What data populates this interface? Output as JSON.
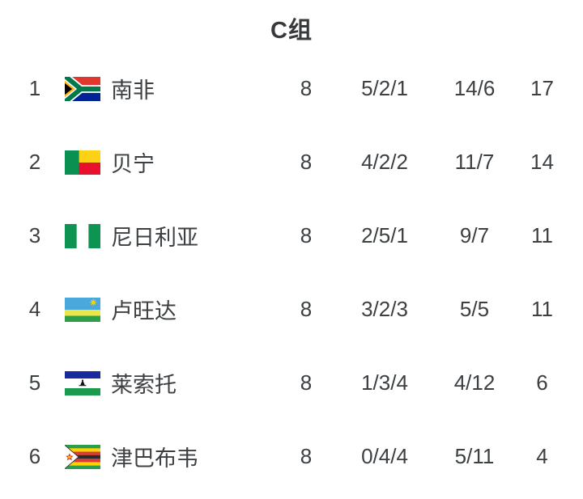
{
  "title": "C组",
  "colors": {
    "background": "#ffffff",
    "row_text": "#3c4043",
    "title_text": "#37393c"
  },
  "standings": {
    "rows": [
      {
        "rank": "1",
        "team": "南非",
        "flag": "south-africa",
        "played": "8",
        "wdl": "5/2/1",
        "goals": "14/6",
        "points": "17"
      },
      {
        "rank": "2",
        "team": "贝宁",
        "flag": "benin",
        "played": "8",
        "wdl": "4/2/2",
        "goals": "11/7",
        "points": "14"
      },
      {
        "rank": "3",
        "team": "尼日利亚",
        "flag": "nigeria",
        "played": "8",
        "wdl": "2/5/1",
        "goals": "9/7",
        "points": "11"
      },
      {
        "rank": "4",
        "team": "卢旺达",
        "flag": "rwanda",
        "played": "8",
        "wdl": "3/2/3",
        "goals": "5/5",
        "points": "11"
      },
      {
        "rank": "5",
        "team": "莱索托",
        "flag": "lesotho",
        "played": "8",
        "wdl": "1/3/4",
        "goals": "4/12",
        "points": "6"
      },
      {
        "rank": "6",
        "team": "津巴布韦",
        "flag": "zimbabwe",
        "played": "8",
        "wdl": "0/4/4",
        "goals": "5/11",
        "points": "4"
      }
    ]
  },
  "flags": {
    "south-africa": {
      "red": "#de3831",
      "blue": "#002395",
      "green": "#007a4d",
      "yellow": "#ffb612",
      "black": "#000000",
      "white": "#ffffff"
    },
    "benin": {
      "green": "#0a9051",
      "yellow": "#fcd116",
      "red": "#e8112d"
    },
    "nigeria": {
      "green": "#0d9452",
      "white": "#ffffff"
    },
    "rwanda": {
      "blue": "#4aa8dd",
      "yellow": "#ece54a",
      "green": "#2e9e4b",
      "sun": "#fad201"
    },
    "lesotho": {
      "blue": "#1a2a9e",
      "white": "#ffffff",
      "green": "#1b9a4e",
      "black": "#101010"
    },
    "zimbabwe": {
      "green": "#2a9e4c",
      "yellow": "#ffd200",
      "red": "#e0393a",
      "black": "#2b2b2b",
      "white": "#ffffff",
      "star": "#de2c2c",
      "bird": "#ffc20e"
    }
  }
}
